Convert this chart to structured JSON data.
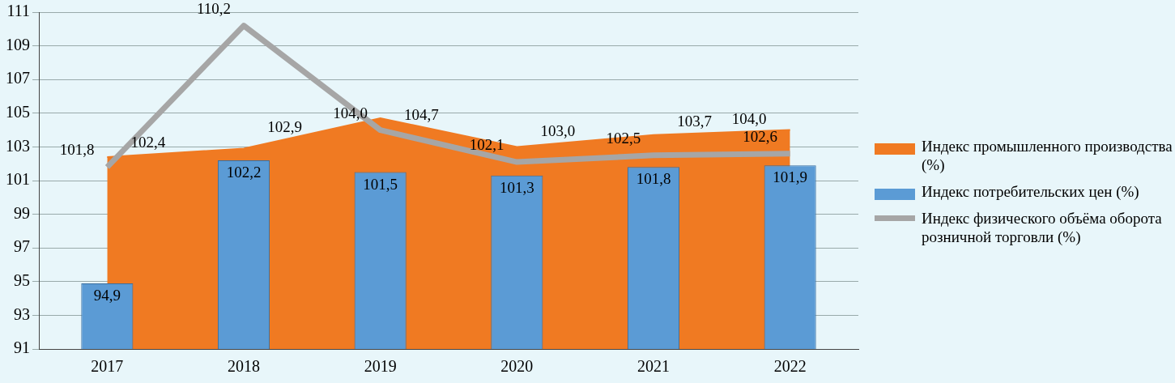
{
  "chart_data": {
    "type": "bar",
    "categories": [
      "2017",
      "2018",
      "2019",
      "2020",
      "2021",
      "2022"
    ],
    "series": [
      {
        "name": "Индекс промышленного производства (%)",
        "type": "area",
        "color": "#f07a22",
        "values": [
          102.4,
          102.9,
          104.7,
          103.0,
          103.7,
          104.0
        ],
        "value_labels": [
          "102,4",
          "102,9",
          "104,7",
          "103,0",
          "103,7",
          "104,0"
        ]
      },
      {
        "name": "Индекс потребительских цен (%)",
        "color": "#5b9bd5",
        "values": [
          94.9,
          102.2,
          101.5,
          101.3,
          101.8,
          101.9
        ],
        "value_labels": [
          "94,9",
          "102,2",
          "101,5",
          "101,3",
          "101,8",
          "101,9"
        ]
      },
      {
        "name": "Индекс физического объёма оборота розничной торговли (%)",
        "type": "line",
        "color": "#a6a6a6",
        "values": [
          101.8,
          110.2,
          104.0,
          102.1,
          102.5,
          102.6
        ],
        "value_labels": [
          "101,8",
          "110,2",
          "104,0",
          "102,1",
          "102,5",
          "102,6"
        ]
      }
    ],
    "ylim": [
      91,
      111
    ],
    "yticks": [
      91,
      93,
      95,
      97,
      99,
      101,
      103,
      105,
      107,
      109,
      111
    ],
    "grid": "y",
    "legend": "right",
    "marker": "none"
  }
}
